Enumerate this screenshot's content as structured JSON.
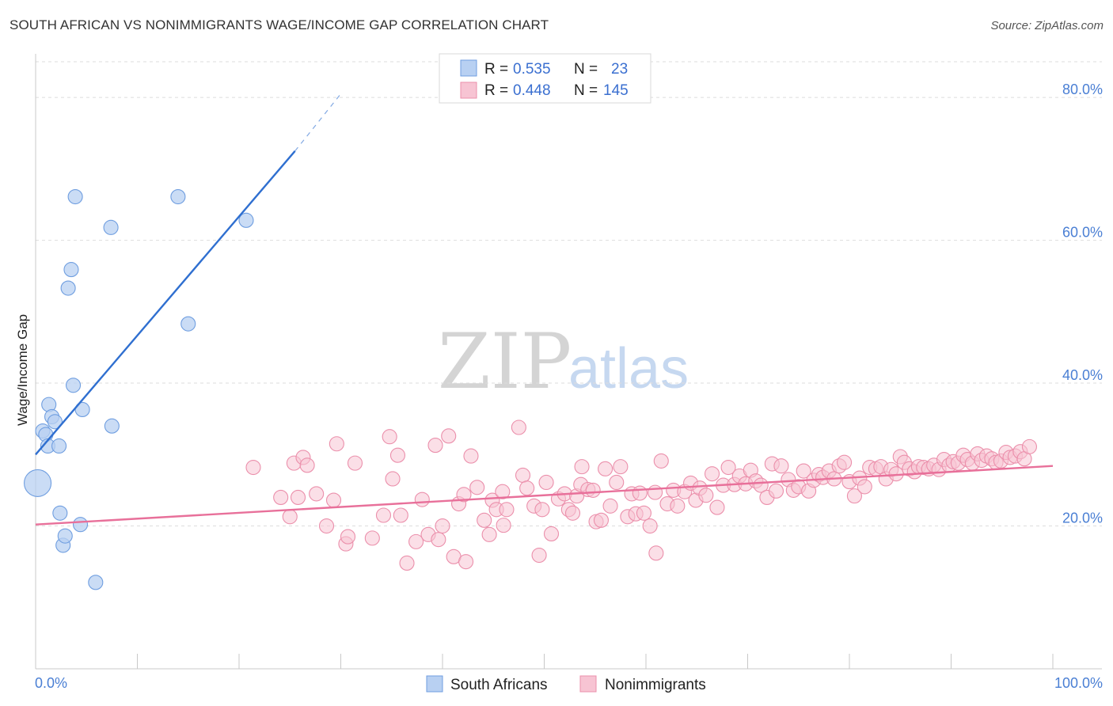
{
  "header": {
    "title": "SOUTH AFRICAN VS NONIMMIGRANTS WAGE/INCOME GAP CORRELATION CHART",
    "source": "Source: ZipAtlas.com"
  },
  "watermark": {
    "zip": "ZIP",
    "atlas": "atlas"
  },
  "legend": {
    "rows": [
      {
        "r_label": "R =",
        "r_value": "0.535",
        "n_label": "N =",
        "n_value": "23"
      },
      {
        "r_label": "R =",
        "r_value": "0.448",
        "n_label": "N =",
        "n_value": "145"
      }
    ]
  },
  "bottom_legend": {
    "s1": "South Africans",
    "s2": "Nonimmigrants"
  },
  "colors": {
    "blue_fill": "#b8d0f2",
    "blue_stroke": "#6f9ee0",
    "blue_line": "#2f6fd0",
    "pink_fill": "#f7c4d3",
    "pink_stroke": "#eb8fab",
    "pink_line": "#e8709a",
    "tick_text": "#4a7fd4",
    "grid": "#dddddd"
  },
  "chart_data": {
    "type": "scatter",
    "title": "SOUTH AFRICAN VS NONIMMIGRANTS WAGE/INCOME GAP CORRELATION CHART",
    "xlabel": "",
    "ylabel": "Wage/Income Gap",
    "xlim": [
      0,
      100
    ],
    "ylim": [
      0,
      85
    ],
    "x_tick_labels": [
      "0.0%",
      "100.0%"
    ],
    "y_ticks": [
      20,
      40,
      60,
      80
    ],
    "y_tick_labels": [
      "20.0%",
      "40.0%",
      "60.0%",
      "80.0%"
    ],
    "grid": true,
    "legend_position": "top-center",
    "series": [
      {
        "name": "South Africans",
        "R": 0.535,
        "N": 23,
        "trend": {
          "x0": 0,
          "y0": 30.0,
          "x1": 25.5,
          "y1": 72.5,
          "dash_to_x": 30,
          "dash_to_y": 80.5
        },
        "points": [
          [
            0.2,
            26.0
          ],
          [
            0.7,
            33.3
          ],
          [
            1.0,
            32.8
          ],
          [
            1.2,
            31.2
          ],
          [
            1.3,
            37.0
          ],
          [
            1.6,
            35.3
          ],
          [
            1.9,
            34.6
          ],
          [
            2.3,
            31.2
          ],
          [
            2.4,
            21.8
          ],
          [
            2.7,
            17.3
          ],
          [
            2.9,
            18.6
          ],
          [
            3.2,
            53.3
          ],
          [
            3.5,
            55.9
          ],
          [
            3.7,
            39.7
          ],
          [
            3.9,
            66.1
          ],
          [
            4.4,
            20.2
          ],
          [
            4.6,
            36.3
          ],
          [
            5.9,
            12.1
          ],
          [
            7.4,
            61.8
          ],
          [
            7.5,
            34.0
          ],
          [
            14.0,
            66.1
          ],
          [
            15.0,
            48.3
          ],
          [
            20.7,
            62.8
          ]
        ]
      },
      {
        "name": "Nonimmigrants",
        "R": 0.448,
        "N": 145,
        "trend": {
          "x0": 0,
          "y0": 20.2,
          "x1": 100,
          "y1": 28.4
        },
        "points": [
          [
            21.4,
            28.2
          ],
          [
            24.1,
            24.0
          ],
          [
            25.0,
            21.3
          ],
          [
            25.4,
            28.8
          ],
          [
            25.8,
            24.0
          ],
          [
            26.3,
            29.6
          ],
          [
            26.7,
            28.5
          ],
          [
            27.6,
            24.5
          ],
          [
            28.6,
            20.0
          ],
          [
            29.3,
            23.6
          ],
          [
            29.6,
            31.5
          ],
          [
            30.5,
            17.5
          ],
          [
            30.7,
            18.5
          ],
          [
            31.4,
            28.8
          ],
          [
            33.1,
            18.3
          ],
          [
            34.2,
            21.5
          ],
          [
            34.8,
            32.5
          ],
          [
            35.1,
            26.6
          ],
          [
            35.6,
            29.9
          ],
          [
            35.9,
            21.5
          ],
          [
            36.5,
            14.8
          ],
          [
            37.4,
            17.8
          ],
          [
            38.0,
            23.7
          ],
          [
            38.6,
            18.8
          ],
          [
            39.3,
            31.3
          ],
          [
            39.6,
            18.1
          ],
          [
            40.0,
            20.0
          ],
          [
            40.6,
            32.6
          ],
          [
            41.1,
            15.7
          ],
          [
            41.6,
            23.1
          ],
          [
            42.1,
            24.4
          ],
          [
            42.3,
            15.0
          ],
          [
            42.8,
            29.8
          ],
          [
            43.4,
            25.4
          ],
          [
            44.1,
            20.8
          ],
          [
            44.6,
            18.8
          ],
          [
            44.9,
            23.6
          ],
          [
            45.3,
            22.3
          ],
          [
            45.9,
            24.8
          ],
          [
            46.0,
            20.1
          ],
          [
            46.3,
            22.3
          ],
          [
            47.5,
            33.8
          ],
          [
            47.9,
            27.1
          ],
          [
            48.3,
            25.3
          ],
          [
            49.0,
            22.8
          ],
          [
            49.5,
            15.9
          ],
          [
            49.8,
            22.3
          ],
          [
            50.2,
            26.1
          ],
          [
            50.7,
            18.9
          ],
          [
            51.4,
            23.8
          ],
          [
            52.0,
            24.5
          ],
          [
            52.4,
            22.3
          ],
          [
            52.8,
            21.8
          ],
          [
            53.2,
            24.2
          ],
          [
            53.6,
            25.8
          ],
          [
            53.7,
            28.3
          ],
          [
            54.3,
            25.1
          ],
          [
            54.8,
            25.0
          ],
          [
            55.1,
            20.6
          ],
          [
            55.6,
            20.8
          ],
          [
            56.0,
            28.0
          ],
          [
            56.5,
            22.8
          ],
          [
            57.1,
            26.1
          ],
          [
            57.5,
            28.3
          ],
          [
            58.2,
            21.3
          ],
          [
            58.6,
            24.5
          ],
          [
            59.0,
            21.7
          ],
          [
            59.4,
            24.6
          ],
          [
            59.8,
            21.8
          ],
          [
            60.4,
            20.0
          ],
          [
            60.9,
            24.7
          ],
          [
            61.0,
            16.2
          ],
          [
            61.5,
            29.1
          ],
          [
            62.1,
            23.1
          ],
          [
            62.7,
            25.0
          ],
          [
            63.1,
            22.8
          ],
          [
            63.8,
            24.8
          ],
          [
            64.4,
            26.0
          ],
          [
            64.9,
            23.6
          ],
          [
            65.3,
            25.3
          ],
          [
            65.9,
            24.3
          ],
          [
            66.5,
            27.3
          ],
          [
            67.0,
            22.6
          ],
          [
            67.6,
            25.7
          ],
          [
            68.1,
            28.2
          ],
          [
            68.7,
            25.8
          ],
          [
            69.2,
            27.0
          ],
          [
            69.8,
            25.9
          ],
          [
            70.3,
            27.8
          ],
          [
            70.8,
            26.3
          ],
          [
            71.3,
            25.7
          ],
          [
            71.9,
            24.0
          ],
          [
            72.4,
            28.7
          ],
          [
            72.8,
            24.9
          ],
          [
            73.3,
            28.4
          ],
          [
            74.0,
            26.5
          ],
          [
            74.5,
            25.0
          ],
          [
            75.0,
            25.5
          ],
          [
            75.5,
            27.7
          ],
          [
            76.0,
            24.9
          ],
          [
            76.5,
            26.4
          ],
          [
            77.0,
            27.2
          ],
          [
            77.4,
            26.8
          ],
          [
            78.0,
            27.7
          ],
          [
            78.5,
            26.6
          ],
          [
            79.0,
            28.4
          ],
          [
            79.5,
            28.9
          ],
          [
            80.0,
            26.2
          ],
          [
            80.5,
            24.2
          ],
          [
            81.0,
            26.7
          ],
          [
            81.5,
            25.5
          ],
          [
            82.0,
            28.2
          ],
          [
            82.6,
            28.0
          ],
          [
            83.1,
            28.3
          ],
          [
            83.6,
            26.6
          ],
          [
            84.1,
            27.9
          ],
          [
            84.6,
            27.3
          ],
          [
            85.0,
            29.7
          ],
          [
            85.4,
            28.9
          ],
          [
            85.9,
            28.0
          ],
          [
            86.4,
            27.6
          ],
          [
            86.8,
            28.3
          ],
          [
            87.3,
            28.2
          ],
          [
            87.8,
            28.0
          ],
          [
            88.3,
            28.5
          ],
          [
            88.8,
            27.9
          ],
          [
            89.3,
            29.3
          ],
          [
            89.8,
            28.5
          ],
          [
            90.2,
            29.0
          ],
          [
            90.7,
            28.8
          ],
          [
            91.2,
            29.9
          ],
          [
            91.6,
            29.3
          ],
          [
            92.1,
            28.8
          ],
          [
            92.6,
            30.1
          ],
          [
            93.0,
            29.2
          ],
          [
            93.5,
            29.8
          ],
          [
            94.0,
            29.4
          ],
          [
            94.4,
            28.9
          ],
          [
            94.9,
            29.1
          ],
          [
            95.4,
            30.3
          ],
          [
            95.8,
            29.6
          ],
          [
            96.3,
            29.8
          ],
          [
            96.8,
            30.4
          ],
          [
            97.2,
            29.4
          ],
          [
            97.7,
            31.1
          ]
        ]
      }
    ]
  }
}
